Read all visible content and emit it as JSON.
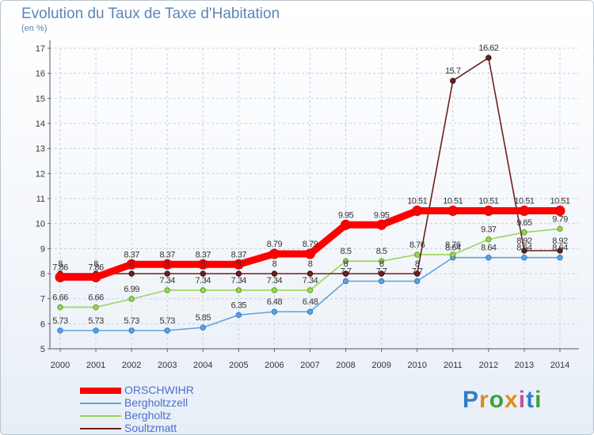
{
  "title": "Evolution du Taux de Taxe d'Habitation",
  "subtitle": "(en %)",
  "logo": "Proxiti",
  "colors": {
    "ORSCHWIHR": "#ff0000",
    "Bergholtzzell": "#5ba3de",
    "Bergholtz": "#99d654",
    "Soultzmatt": "#6e1f1f"
  },
  "chart_data": {
    "type": "line",
    "title": "Evolution du Taux de Taxe d'Habitation",
    "ylabel": "(en %)",
    "xlabel": "",
    "x": [
      "2000",
      "2001",
      "2002",
      "2003",
      "2004",
      "2005",
      "2006",
      "2007",
      "2008",
      "2009",
      "2010",
      "2011",
      "2012",
      "2013",
      "2014"
    ],
    "ylim": [
      5,
      17
    ],
    "yticks": [
      "5",
      "6",
      "7",
      "8",
      "9",
      "10",
      "11",
      "12",
      "13",
      "14",
      "15",
      "16",
      "17"
    ],
    "grid": true,
    "legend_position": "bottom-left",
    "series": [
      {
        "name": "ORSCHWIHR",
        "values": [
          7.86,
          7.86,
          8.37,
          8.37,
          8.37,
          8.37,
          8.79,
          8.79,
          9.95,
          9.95,
          10.51,
          10.51,
          10.51,
          10.51,
          10.51
        ],
        "labels": [
          "7.86",
          "7.86",
          "8.37",
          "8.37",
          "8.37",
          "8.37",
          "8.79",
          "8.79",
          "9.95",
          "9.95",
          "10.51",
          "10.51",
          "10.51",
          "10.51",
          "10.51"
        ]
      },
      {
        "name": "Bergholtzzell",
        "values": [
          5.73,
          5.73,
          5.73,
          5.73,
          5.85,
          6.35,
          6.48,
          6.48,
          7.7,
          7.7,
          7.7,
          8.64,
          8.64,
          8.64,
          8.64
        ],
        "labels": [
          "5.73",
          "5.73",
          "5.73",
          "5.73",
          "5.85",
          "6.35",
          "6.48",
          "6.48",
          "7.7",
          "7.7",
          "7.7",
          "8.64",
          "8.64",
          "8.64",
          "8.64"
        ]
      },
      {
        "name": "Bergholtz",
        "values": [
          6.66,
          6.66,
          6.99,
          7.34,
          7.34,
          7.34,
          7.34,
          7.34,
          8.5,
          8.5,
          8.76,
          8.76,
          9.37,
          9.65,
          9.79
        ],
        "labels": [
          "6.66",
          "6.66",
          "6.99",
          "7.34",
          "7.34",
          "7.34",
          "7.34",
          "7.34",
          "8.5",
          "8.5",
          "8.76",
          "8.76",
          "9.37",
          "9.65",
          "9.79"
        ]
      },
      {
        "name": "Soultzmatt",
        "values": [
          8,
          8,
          8,
          8,
          8,
          8,
          8,
          8,
          8,
          8,
          8,
          15.7,
          16.62,
          8.92,
          8.92
        ],
        "labels": [
          "8",
          "8",
          "8",
          "8",
          "8",
          "8",
          "8",
          "8",
          "8",
          "8",
          "8",
          "15.7",
          "16.62",
          "8.92",
          "8.92"
        ]
      }
    ]
  }
}
